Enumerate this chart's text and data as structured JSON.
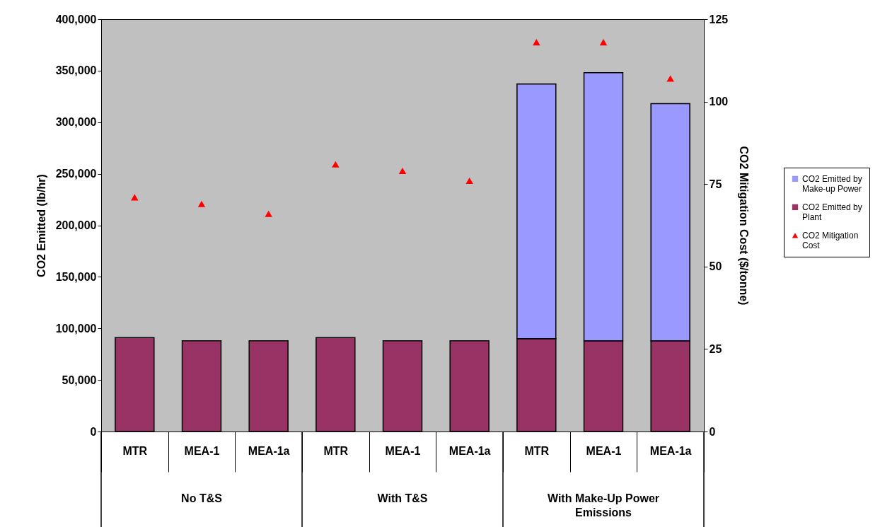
{
  "chart_data": {
    "type": "bar",
    "stacked": true,
    "categories": [
      "MTR",
      "MEA-1",
      "MEA-1a",
      "MTR",
      "MEA-1",
      "MEA-1a",
      "MTR",
      "MEA-1",
      "MEA-1a"
    ],
    "series": [
      {
        "name": "CO2 Emitted by Plant",
        "color": "#993366",
        "values": [
          91000,
          88000,
          88000,
          91000,
          88000,
          88000,
          90000,
          88000,
          88000
        ]
      },
      {
        "name": "CO2 Emitted by Make-up Power",
        "color": "#9999ff",
        "values": [
          null,
          null,
          null,
          null,
          null,
          null,
          247000,
          260000,
          230000
        ]
      },
      {
        "name": "CO2 Mitigation Cost",
        "type": "scatter",
        "axis": "y2",
        "marker": "triangle",
        "color": "#ff0000",
        "values": [
          71,
          69,
          66,
          81,
          79,
          76,
          118,
          118,
          107
        ]
      }
    ],
    "ylabel": "CO2 Emitted (lb/hr)",
    "y2label": "CO2 Mitigation Cost ($/tonne)",
    "ylim": [
      0,
      400000
    ],
    "yticks": [
      0,
      {
        "value": 50000,
        "label": "50,000"
      },
      {
        "value": 100000,
        "label": "100,000"
      },
      {
        "value": 150000,
        "label": "150,000"
      },
      {
        "value": 200000,
        "label": "200,000"
      },
      {
        "value": 250000,
        "label": "250,000"
      },
      {
        "value": 300000,
        "label": "300,000"
      },
      {
        "value": 350000,
        "label": "350,000"
      },
      {
        "value": 400000,
        "label": "400,000"
      }
    ],
    "y2lim": [
      0,
      125
    ],
    "y2ticks": [
      0,
      25,
      50,
      75,
      100,
      125
    ],
    "annotations": [
      "No T&S",
      "With T&S",
      "With Make-Up Power Emissions"
    ],
    "grid": false,
    "legend": "right"
  }
}
